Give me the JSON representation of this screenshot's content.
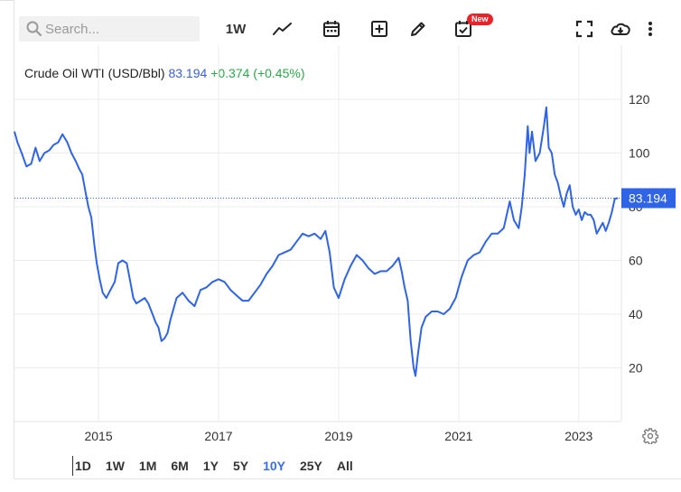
{
  "toolbar": {
    "search_placeholder": "Search...",
    "interval_label": "1W",
    "new_badge": "New",
    "icons": [
      "search-icon",
      "line-chart-icon",
      "calendar-icon",
      "add-icon",
      "pencil-icon",
      "event-check-icon",
      "fullscreen-icon",
      "cloud-download-icon",
      "more-vertical-icon"
    ]
  },
  "quote": {
    "name": "Crude Oil WTI (USD/Bbl)",
    "price": "83.194",
    "change": "+0.374 (+0.45%)"
  },
  "colors": {
    "line": "#2f64e6",
    "price_tag": "#2f64e6",
    "change_up": "#2da84a",
    "active_range": "#3a6fe0"
  },
  "ranges": {
    "items": [
      "1D",
      "1W",
      "1M",
      "6M",
      "1Y",
      "5Y",
      "10Y",
      "25Y",
      "All"
    ],
    "active": "10Y"
  },
  "chart_data": {
    "type": "line",
    "title": "Crude Oil WTI (USD/Bbl)",
    "xlabel": "",
    "ylabel": "",
    "ylim": [
      0,
      140
    ],
    "yticks": [
      20,
      40,
      60,
      80,
      100,
      120
    ],
    "xticks": [
      2015,
      2017,
      2019,
      2021,
      2023
    ],
    "grid": true,
    "last_value_label": "83.194",
    "series": [
      {
        "name": "Crude Oil WTI",
        "x": [
          2013.6,
          2013.65,
          2013.72,
          2013.8,
          2013.88,
          2013.95,
          2014.02,
          2014.1,
          2014.18,
          2014.25,
          2014.33,
          2014.4,
          2014.48,
          2014.55,
          2014.62,
          2014.68,
          2014.73,
          2014.78,
          2014.83,
          2014.88,
          2014.93,
          2014.97,
          2015.02,
          2015.07,
          2015.13,
          2015.2,
          2015.27,
          2015.33,
          2015.4,
          2015.47,
          2015.53,
          2015.58,
          2015.63,
          2015.7,
          2015.77,
          2015.83,
          2015.9,
          2015.95,
          2016.0,
          2016.05,
          2016.1,
          2016.15,
          2016.2,
          2016.3,
          2016.4,
          2016.5,
          2016.6,
          2016.7,
          2016.8,
          2016.9,
          2017.0,
          2017.1,
          2017.2,
          2017.3,
          2017.4,
          2017.5,
          2017.6,
          2017.7,
          2017.8,
          2017.9,
          2018.0,
          2018.1,
          2018.2,
          2018.3,
          2018.4,
          2018.5,
          2018.6,
          2018.7,
          2018.78,
          2018.85,
          2018.92,
          2019.0,
          2019.1,
          2019.2,
          2019.3,
          2019.4,
          2019.5,
          2019.6,
          2019.7,
          2019.8,
          2019.9,
          2020.0,
          2020.05,
          2020.1,
          2020.15,
          2020.2,
          2020.25,
          2020.28,
          2020.32,
          2020.38,
          2020.45,
          2020.55,
          2020.65,
          2020.75,
          2020.85,
          2020.95,
          2021.05,
          2021.15,
          2021.25,
          2021.35,
          2021.45,
          2021.55,
          2021.65,
          2021.75,
          2021.85,
          2021.92,
          2022.0,
          2022.05,
          2022.1,
          2022.15,
          2022.18,
          2022.22,
          2022.28,
          2022.35,
          2022.42,
          2022.46,
          2022.5,
          2022.55,
          2022.6,
          2022.65,
          2022.7,
          2022.75,
          2022.8,
          2022.85,
          2022.9,
          2022.95,
          2023.0,
          2023.05,
          2023.1,
          2023.15,
          2023.2,
          2023.25,
          2023.3,
          2023.35,
          2023.4,
          2023.45,
          2023.5,
          2023.55,
          2023.6,
          2023.65
        ],
        "values": [
          108,
          104,
          100,
          95,
          96,
          102,
          97,
          100,
          101,
          103,
          104,
          107,
          104,
          100,
          97,
          94,
          92,
          86,
          80,
          76,
          66,
          59,
          53,
          48,
          46,
          49,
          52,
          59,
          60,
          59,
          52,
          46,
          44,
          45,
          46,
          44,
          40,
          37,
          35,
          30,
          31,
          33,
          38,
          46,
          48,
          45,
          43,
          49,
          50,
          52,
          53,
          52,
          49,
          47,
          45,
          45,
          48,
          51,
          55,
          58,
          62,
          63,
          64,
          67,
          70,
          69,
          70,
          68,
          71,
          63,
          50,
          46,
          53,
          58,
          62,
          60,
          57,
          55,
          56,
          56,
          58,
          61,
          56,
          50,
          45,
          30,
          20,
          17,
          25,
          35,
          39,
          41,
          41,
          40,
          42,
          46,
          54,
          60,
          62,
          63,
          67,
          70,
          70,
          72,
          82,
          75,
          72,
          80,
          92,
          110,
          100,
          108,
          97,
          100,
          110,
          117,
          102,
          100,
          92,
          89,
          84,
          80,
          85,
          88,
          80,
          77,
          79,
          75,
          78,
          77,
          77,
          75,
          70,
          72,
          74,
          71,
          74,
          78,
          83,
          83.2
        ]
      }
    ]
  }
}
